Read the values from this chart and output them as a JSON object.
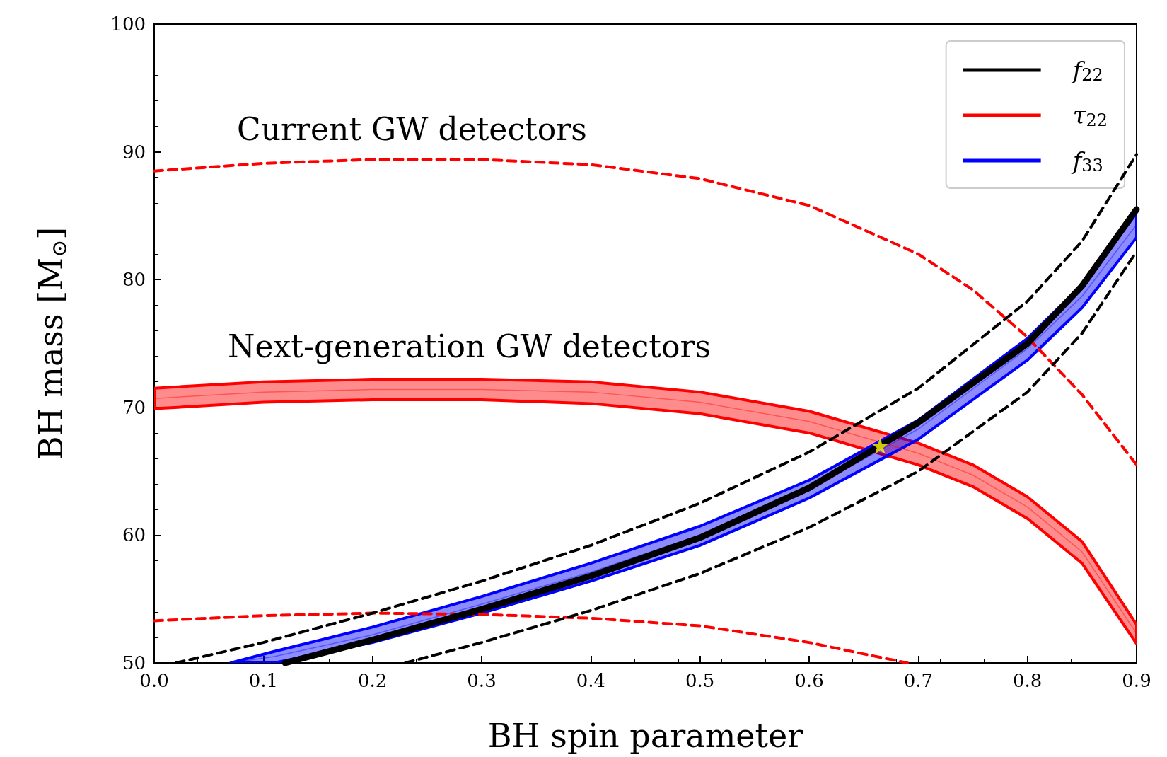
{
  "chart_data": {
    "type": "line",
    "xlabel": "BH spin parameter",
    "ylabel": "BH mass [M$_{⊙}$]",
    "annotations": [
      "Current GW detectors",
      "Next-generation GW detectors"
    ],
    "xlim": [
      0,
      0.9
    ],
    "ylim": [
      50,
      100
    ],
    "xticks": [
      {
        "value": 0,
        "label": "0.0"
      },
      0.1,
      0.2,
      0.3,
      0.4,
      0.5,
      0.6,
      0.7,
      0.8,
      0.9
    ],
    "yticks": [
      50,
      60,
      70,
      80,
      90,
      100
    ],
    "grid": false,
    "legend": "top right",
    "series": [
      {
        "name": "f$_{22}$",
        "color": "#000000",
        "line_style": "solid",
        "x": [
          0.12,
          0.2,
          0.3,
          0.4,
          0.5,
          0.6,
          0.665,
          0.7,
          0.8,
          0.85,
          0.9
        ],
        "values": [
          50,
          51.8,
          54.2,
          56.8,
          59.8,
          63.7,
          67,
          68.8,
          75,
          79.5,
          85.5
        ]
      },
      {
        "name": "τ$_{22}$",
        "color": "#ff0000",
        "line_style": "solid",
        "x": [
          0,
          0.1,
          0.2,
          0.3,
          0.4,
          0.5,
          0.6,
          0.7,
          0.75,
          0.8,
          0.85,
          0.9
        ],
        "values": [
          70.7,
          71.2,
          71.4,
          71.4,
          71.2,
          70.4,
          68.9,
          66.4,
          64.7,
          62.2,
          58.7,
          52.3
        ],
        "lower": [
          69.9,
          70.4,
          70.6,
          70.6,
          70.3,
          69.5,
          68,
          65.5,
          63.8,
          61.3,
          57.8,
          51.5
        ],
        "upper": [
          71.5,
          72,
          72.2,
          72.2,
          72,
          71.2,
          69.7,
          67.2,
          65.5,
          63,
          59.5,
          53
        ]
      },
      {
        "name": "f$_{33}$",
        "color": "#0000ff",
        "line_style": "solid",
        "x": [
          0.07,
          0.11,
          0.2,
          0.3,
          0.4,
          0.5,
          0.6,
          0.7,
          0.8,
          0.85,
          0.9
        ],
        "values": [
          50,
          50.5,
          52.2,
          54.6,
          57.1,
          60,
          63.6,
          68.3,
          74.6,
          78.7,
          84.3
        ],
        "lower": [
          50,
          50,
          51.6,
          53.9,
          56.4,
          59.2,
          62.9,
          67.5,
          73.7,
          77.8,
          83.3
        ],
        "upper": [
          50,
          50.9,
          52.8,
          55.2,
          57.8,
          60.7,
          64.3,
          69,
          75.4,
          79.6,
          85.2
        ]
      },
      {
        "color": "#ff0000",
        "line_style": "dashed",
        "x": [
          0,
          0.1,
          0.2,
          0.3,
          0.4,
          0.5,
          0.6,
          0.7,
          0.75,
          0.8,
          0.85,
          0.9
        ],
        "values": [
          88.5,
          89.1,
          89.4,
          89.4,
          89,
          87.9,
          85.8,
          82,
          79.2,
          75.5,
          71,
          65.5
        ]
      },
      {
        "color": "#ff0000",
        "line_style": "dashed",
        "x": [
          0,
          0.1,
          0.2,
          0.3,
          0.4,
          0.5,
          0.6,
          0.65,
          0.69
        ],
        "values": [
          53.3,
          53.7,
          53.9,
          53.8,
          53.5,
          52.9,
          51.6,
          50.7,
          50
        ]
      },
      {
        "color": "#000000",
        "line_style": "dashed",
        "x": [
          0.02,
          0.1,
          0.2,
          0.3,
          0.4,
          0.5,
          0.6,
          0.7,
          0.8,
          0.85,
          0.9
        ],
        "values": [
          50,
          51.6,
          53.9,
          56.4,
          59.2,
          62.5,
          66.5,
          71.5,
          78.3,
          83,
          89.8
        ]
      },
      {
        "color": "#000000",
        "line_style": "dashed",
        "x": [
          0.23,
          0.3,
          0.4,
          0.5,
          0.6,
          0.7,
          0.8,
          0.85,
          0.9
        ],
        "values": [
          50,
          51.6,
          54.1,
          57,
          60.6,
          65,
          71.2,
          75.8,
          82.2
        ]
      },
      {
        "type": "scatter",
        "marker": "star",
        "color": "#ffff00",
        "x": [
          0.665
        ],
        "values": [
          67
        ]
      }
    ]
  }
}
